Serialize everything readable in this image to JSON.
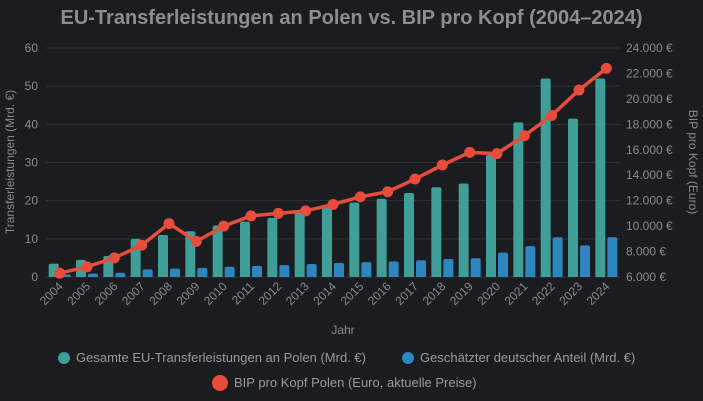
{
  "chart_data": {
    "type": "bar",
    "title": "EU-Transferleistungen an Polen vs. BIP pro Kopf (2004–2024)",
    "xlabel": "Jahr",
    "ylabel_left": "Transferleistungen (Mrd. €)",
    "ylabel_right": "BIP pro Kopf (Euro)",
    "ylim_left": [
      0,
      60
    ],
    "yticks_left": [
      "0",
      "10",
      "20",
      "30",
      "40",
      "50",
      "60"
    ],
    "ylim_right": [
      6000,
      24000
    ],
    "yticks_right": [
      "6.000 €",
      "8.000 €",
      "10.000 €",
      "12.000 €",
      "14.000 €",
      "16.000 €",
      "18.000 €",
      "20.000 €",
      "22.000 €",
      "24.000 €"
    ],
    "categories": [
      "2004",
      "2005",
      "2006",
      "2007",
      "2008",
      "2009",
      "2010",
      "2011",
      "2012",
      "2013",
      "2014",
      "2015",
      "2016",
      "2017",
      "2018",
      "2019",
      "2020",
      "2021",
      "2022",
      "2023",
      "2024"
    ],
    "series": [
      {
        "name": "Gesamte EU-Transferleistungen an Polen (Mrd. €)",
        "type": "bar",
        "axis": "left",
        "color": "#3f9e97",
        "values": [
          3.5,
          4.5,
          5.5,
          10,
          11,
          12,
          13.5,
          14.5,
          15.5,
          17,
          18.5,
          19.5,
          20.5,
          22,
          23.5,
          24.5,
          32,
          40.5,
          52,
          41.5,
          52
        ]
      },
      {
        "name": "Geschätzter deutscher Anteil (Mrd. €)",
        "type": "bar",
        "axis": "left",
        "color": "#2e86c1",
        "values": [
          0.7,
          0.9,
          1.1,
          2.0,
          2.2,
          2.4,
          2.7,
          2.9,
          3.1,
          3.4,
          3.7,
          3.9,
          4.1,
          4.4,
          4.7,
          4.9,
          6.4,
          8.1,
          10.4,
          8.3,
          10.4
        ]
      },
      {
        "name": "BIP pro Kopf Polen (Euro, aktuelle Preise)",
        "type": "line",
        "axis": "right",
        "color": "#e74c3c",
        "values": [
          6300,
          6800,
          7500,
          8500,
          10200,
          8800,
          10000,
          10800,
          11000,
          11200,
          11700,
          12300,
          12700,
          13700,
          14800,
          15800,
          15700,
          17100,
          18700,
          20700,
          22400
        ]
      }
    ],
    "grid": true,
    "legend": "bottom"
  }
}
